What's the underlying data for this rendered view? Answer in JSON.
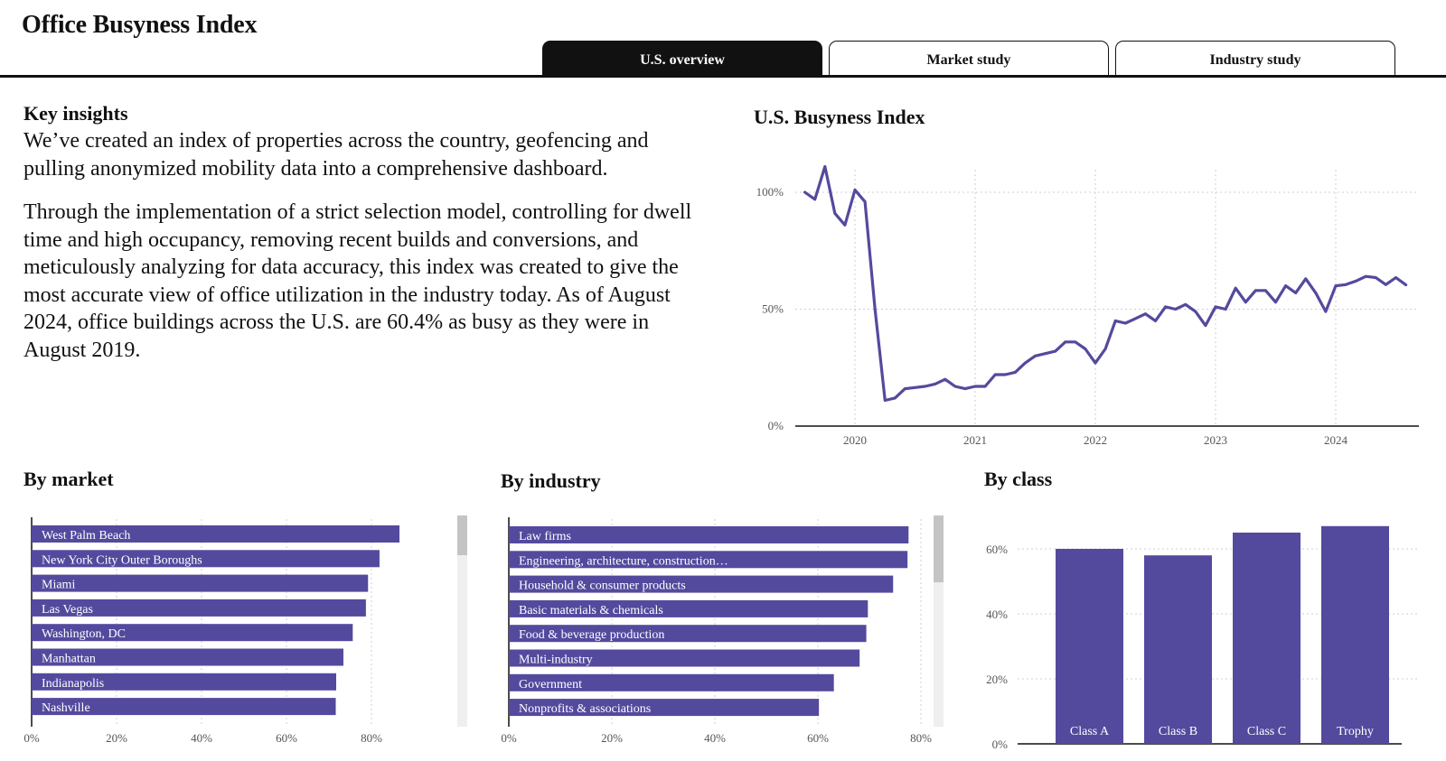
{
  "app": {
    "title": "Office Busyness Index"
  },
  "tabs": [
    {
      "label": "U.S. overview",
      "active": true
    },
    {
      "label": "Market study",
      "active": false
    },
    {
      "label": "Industry study",
      "active": false
    }
  ],
  "insights": {
    "heading": "Key insights",
    "paragraphs": [
      "We’ve created an index of properties across the country, geofencing and pulling anonymized mobility data into a comprehensive dashboard.",
      "Through the implementation of a strict selection model, controlling for dwell time and high occupancy, removing recent builds and conversions, and meticulously analyzing for data accuracy, this index was created to give the most accurate view of office utilization in the industry today. As of August 2024, office buildings across the U.S. are 60.4% as busy as they were in August 2019."
    ]
  },
  "colors": {
    "accent": "#534a9e",
    "ink": "#111111",
    "scrollbar_track": "#efefef",
    "scrollbar_thumb": "#c4c4c4"
  },
  "chart_data": [
    {
      "id": "us_busyness",
      "type": "line",
      "title": "U.S. Busyness Index",
      "xlabel": "",
      "ylabel": "",
      "x_ticks": [
        "2020",
        "2021",
        "2022",
        "2023",
        "2024"
      ],
      "y_ticks": [
        "0%",
        "50%",
        "100%"
      ],
      "ylim": [
        0,
        1.1
      ],
      "grid": true,
      "series": [
        {
          "x": [
            "2019-08",
            "2019-09",
            "2019-10",
            "2019-11",
            "2019-12",
            "2020-01",
            "2020-02",
            "2020-03",
            "2020-04",
            "2020-05",
            "2020-06",
            "2020-07",
            "2020-08",
            "2020-09",
            "2020-10",
            "2020-11",
            "2020-12",
            "2021-01",
            "2021-02",
            "2021-03",
            "2021-04",
            "2021-05",
            "2021-06",
            "2021-07",
            "2021-08",
            "2021-09",
            "2021-10",
            "2021-11",
            "2021-12",
            "2022-01",
            "2022-02",
            "2022-03",
            "2022-04",
            "2022-05",
            "2022-06",
            "2022-07",
            "2022-08",
            "2022-09",
            "2022-10",
            "2022-11",
            "2022-12",
            "2023-01",
            "2023-02",
            "2023-03",
            "2023-04",
            "2023-05",
            "2023-06",
            "2023-07",
            "2023-08",
            "2023-09",
            "2023-10",
            "2023-11",
            "2023-12",
            "2024-01",
            "2024-02",
            "2024-03",
            "2024-04",
            "2024-05",
            "2024-06",
            "2024-07",
            "2024-08"
          ],
          "y": [
            1.0,
            0.97,
            1.11,
            0.91,
            0.86,
            1.01,
            0.96,
            0.5,
            0.11,
            0.12,
            0.16,
            0.165,
            0.17,
            0.18,
            0.2,
            0.17,
            0.16,
            0.17,
            0.17,
            0.22,
            0.22,
            0.23,
            0.27,
            0.3,
            0.31,
            0.32,
            0.36,
            0.36,
            0.33,
            0.27,
            0.33,
            0.45,
            0.44,
            0.46,
            0.48,
            0.45,
            0.51,
            0.5,
            0.52,
            0.49,
            0.43,
            0.51,
            0.5,
            0.59,
            0.53,
            0.58,
            0.58,
            0.53,
            0.6,
            0.57,
            0.63,
            0.57,
            0.49,
            0.6,
            0.605,
            0.62,
            0.64,
            0.635,
            0.605,
            0.635,
            0.604
          ]
        }
      ]
    },
    {
      "id": "by_market",
      "type": "bar",
      "orientation": "horizontal",
      "title": "By market",
      "categories": [
        "West Palm Beach",
        "New York City Outer Boroughs",
        "Miami",
        "Las Vegas",
        "Washington, DC",
        "Manhattan",
        "Indianapolis",
        "Nashville"
      ],
      "values": [
        0.866,
        0.819,
        0.792,
        0.787,
        0.756,
        0.734,
        0.717,
        0.716
      ],
      "x_ticks": [
        "0%",
        "20%",
        "40%",
        "60%",
        "80%"
      ],
      "xlim": [
        0,
        1.0
      ],
      "grid": true
    },
    {
      "id": "by_industry",
      "type": "bar",
      "orientation": "horizontal",
      "title": "By industry",
      "categories": [
        "Law firms",
        "Engineering, architecture, construction…",
        "Household & consumer products",
        "Basic materials & chemicals",
        "Food & beverage production",
        "Multi-industry",
        "Government",
        "Nonprofits & associations"
      ],
      "values": [
        0.776,
        0.774,
        0.746,
        0.697,
        0.694,
        0.681,
        0.631,
        0.602
      ],
      "x_ticks": [
        "0%",
        "20%",
        "40%",
        "60%",
        "80%"
      ],
      "xlim": [
        0,
        0.85
      ],
      "grid": true
    },
    {
      "id": "by_class",
      "type": "bar",
      "orientation": "vertical",
      "title": "By class",
      "categories": [
        "Class A",
        "Class B",
        "Class C",
        "Trophy"
      ],
      "values": [
        0.6,
        0.58,
        0.65,
        0.67
      ],
      "y_ticks": [
        "0%",
        "20%",
        "40%",
        "60%"
      ],
      "ylim": [
        0,
        0.7
      ],
      "grid": true
    }
  ]
}
